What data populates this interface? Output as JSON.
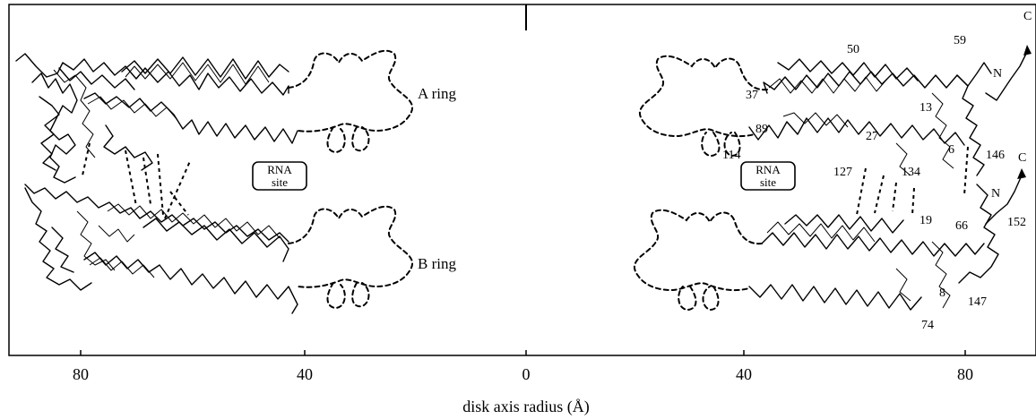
{
  "figure": {
    "axis_title": "disk axis radius (Å)",
    "x_ticks": [
      {
        "value": 80,
        "label": "80"
      },
      {
        "value": 40,
        "label": "40"
      },
      {
        "value": 0,
        "label": "0"
      },
      {
        "value": 40,
        "label": "40"
      },
      {
        "value": 80,
        "label": "80"
      }
    ],
    "ring_labels": {
      "a": "A ring",
      "b": "B ring"
    },
    "rna_site": {
      "line1": "RNA",
      "line2": "site"
    },
    "residue_labels": {
      "r50": "50",
      "r59": "59",
      "r37": "37",
      "rN1": "N",
      "rC1": "C",
      "r13": "13",
      "r89": "89",
      "r27": "27",
      "r114": "114",
      "r6": "6",
      "r146": "146",
      "r127": "127",
      "r134": "134",
      "rC2": "C",
      "rN2": "N",
      "r19": "19",
      "r66": "66",
      "r152": "152",
      "r8": "8",
      "r147": "147",
      "r74": "74"
    }
  }
}
